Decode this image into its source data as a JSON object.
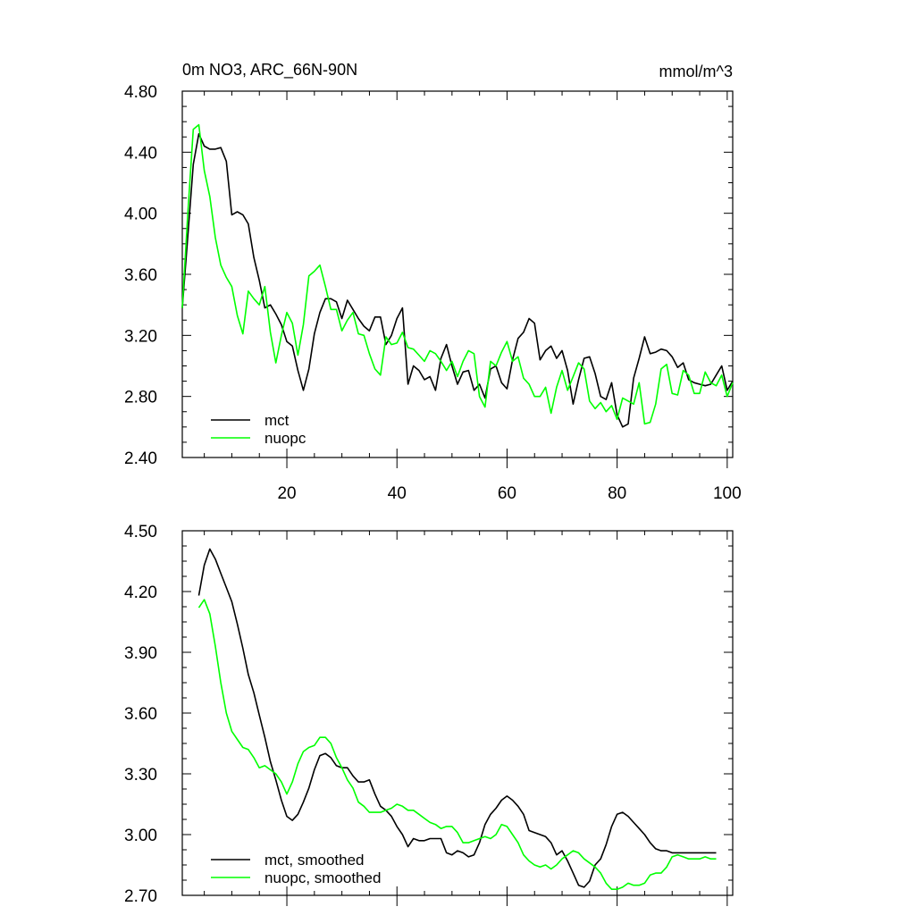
{
  "chart_data": [
    {
      "type": "line",
      "title": "0m NO3, ARC_66N-90N",
      "units_label": "mmol/m^3",
      "xlabel": "",
      "ylabel": "",
      "xlim": [
        1,
        101
      ],
      "ylim": [
        2.4,
        4.8
      ],
      "xticks": [
        20,
        40,
        60,
        80,
        100
      ],
      "xtick_labels": [
        "20",
        "40",
        "60",
        "80",
        "100"
      ],
      "yticks": [
        2.4,
        2.8,
        3.2,
        3.6,
        4.0,
        4.4,
        4.8
      ],
      "ytick_labels": [
        "2.40",
        "2.80",
        "3.20",
        "3.60",
        "4.00",
        "4.40",
        "4.80"
      ],
      "legend_position": "bottom-left",
      "series": [
        {
          "name": "mct",
          "color": "#000000",
          "x": [
            1,
            2,
            3,
            4,
            5,
            6,
            7,
            8,
            9,
            10,
            11,
            12,
            13,
            14,
            15,
            16,
            17,
            18,
            19,
            20,
            21,
            22,
            23,
            24,
            25,
            26,
            27,
            28,
            29,
            30,
            31,
            32,
            33,
            34,
            35,
            36,
            37,
            38,
            39,
            40,
            41,
            42,
            43,
            44,
            45,
            46,
            47,
            48,
            49,
            50,
            51,
            52,
            53,
            54,
            55,
            56,
            57,
            58,
            59,
            60,
            61,
            62,
            63,
            64,
            65,
            66,
            67,
            68,
            69,
            70,
            71,
            72,
            73,
            74,
            75,
            76,
            77,
            78,
            79,
            80,
            81,
            82,
            83,
            84,
            85,
            86,
            87,
            88,
            89,
            90,
            91,
            92,
            93,
            94,
            95,
            96,
            97,
            98,
            99,
            100,
            101
          ],
          "y": [
            3.38,
            3.85,
            4.32,
            4.52,
            4.44,
            4.42,
            4.42,
            4.43,
            4.34,
            3.99,
            4.01,
            3.99,
            3.93,
            3.71,
            3.56,
            3.38,
            3.4,
            3.34,
            3.27,
            3.16,
            3.13,
            2.97,
            2.84,
            2.98,
            3.21,
            3.35,
            3.44,
            3.44,
            3.42,
            3.31,
            3.43,
            3.37,
            3.31,
            3.26,
            3.23,
            3.32,
            3.32,
            3.14,
            3.2,
            3.31,
            3.38,
            2.88,
            3.0,
            2.97,
            2.91,
            2.93,
            2.84,
            3.05,
            3.14,
            3.0,
            2.88,
            2.96,
            2.97,
            2.84,
            2.88,
            2.79,
            2.98,
            3.0,
            2.89,
            2.85,
            3.04,
            3.18,
            3.22,
            3.31,
            3.28,
            3.04,
            3.1,
            3.13,
            3.05,
            3.1,
            2.97,
            2.75,
            2.91,
            3.05,
            3.06,
            2.95,
            2.8,
            2.78,
            2.89,
            2.68,
            2.6,
            2.62,
            2.92,
            3.05,
            3.19,
            3.08,
            3.09,
            3.11,
            3.1,
            3.06,
            2.99,
            3.02,
            2.91,
            2.89,
            2.88,
            2.87,
            2.88,
            2.94,
            3.0,
            2.84,
            2.9
          ]
        },
        {
          "name": "nuopc",
          "color": "#00ff00",
          "x": [
            1,
            2,
            3,
            4,
            5,
            6,
            7,
            8,
            9,
            10,
            11,
            12,
            13,
            14,
            15,
            16,
            17,
            18,
            19,
            20,
            21,
            22,
            23,
            24,
            25,
            26,
            27,
            28,
            29,
            30,
            31,
            32,
            33,
            34,
            35,
            36,
            37,
            38,
            39,
            40,
            41,
            42,
            43,
            44,
            45,
            46,
            47,
            48,
            49,
            50,
            51,
            52,
            53,
            54,
            55,
            56,
            57,
            58,
            59,
            60,
            61,
            62,
            63,
            64,
            65,
            66,
            67,
            68,
            69,
            70,
            71,
            72,
            73,
            74,
            75,
            76,
            77,
            78,
            79,
            80,
            81,
            82,
            83,
            84,
            85,
            86,
            87,
            88,
            89,
            90,
            91,
            92,
            93,
            94,
            95,
            96,
            97,
            98,
            99,
            100,
            101
          ],
          "y": [
            3.38,
            4.0,
            4.55,
            4.58,
            4.28,
            4.11,
            3.84,
            3.66,
            3.58,
            3.52,
            3.33,
            3.21,
            3.49,
            3.44,
            3.4,
            3.52,
            3.22,
            3.02,
            3.2,
            3.35,
            3.28,
            3.07,
            3.27,
            3.59,
            3.62,
            3.66,
            3.52,
            3.37,
            3.37,
            3.23,
            3.3,
            3.35,
            3.21,
            3.2,
            3.08,
            2.98,
            2.94,
            3.19,
            3.14,
            3.15,
            3.22,
            3.12,
            3.11,
            3.07,
            3.03,
            3.1,
            3.08,
            3.03,
            2.97,
            3.03,
            2.93,
            3.03,
            3.1,
            3.08,
            2.8,
            2.73,
            3.03,
            3.0,
            3.09,
            3.16,
            3.03,
            3.06,
            2.92,
            2.88,
            2.8,
            2.8,
            2.86,
            2.69,
            2.86,
            2.97,
            2.84,
            2.93,
            3.02,
            2.98,
            2.77,
            2.72,
            2.76,
            2.7,
            2.74,
            2.65,
            2.79,
            2.77,
            2.75,
            2.89,
            2.62,
            2.63,
            2.75,
            2.98,
            3.01,
            2.82,
            2.81,
            2.97,
            2.94,
            2.82,
            2.82,
            2.96,
            2.89,
            2.87,
            2.94,
            2.8,
            2.89
          ]
        }
      ]
    },
    {
      "type": "line",
      "title": "",
      "xlabel": "",
      "ylabel": "",
      "xlim": [
        1,
        101
      ],
      "ylim": [
        2.7,
        4.5
      ],
      "xticks": [
        20,
        40,
        60,
        80,
        100
      ],
      "xtick_labels": [],
      "yticks": [
        2.7,
        3.0,
        3.3,
        3.6,
        3.9,
        4.2,
        4.5
      ],
      "ytick_labels": [
        "2.70",
        "3.00",
        "3.30",
        "3.60",
        "3.90",
        "4.20",
        "4.50"
      ],
      "legend_position": "bottom-left",
      "series": [
        {
          "name": "mct, smoothed",
          "color": "#000000",
          "x": [
            4,
            5,
            6,
            7,
            8,
            9,
            10,
            11,
            12,
            13,
            14,
            15,
            16,
            17,
            18,
            19,
            20,
            21,
            22,
            23,
            24,
            25,
            26,
            27,
            28,
            29,
            30,
            31,
            32,
            33,
            34,
            35,
            36,
            37,
            38,
            39,
            40,
            41,
            42,
            43,
            44,
            45,
            46,
            47,
            48,
            49,
            50,
            51,
            52,
            53,
            54,
            55,
            56,
            57,
            58,
            59,
            60,
            61,
            62,
            63,
            64,
            65,
            66,
            67,
            68,
            69,
            70,
            71,
            72,
            73,
            74,
            75,
            76,
            77,
            78,
            79,
            80,
            81,
            82,
            83,
            84,
            85,
            86,
            87,
            88,
            89,
            90,
            91,
            92,
            93,
            94,
            95,
            96,
            97,
            98
          ],
          "y": [
            4.18,
            4.33,
            4.41,
            4.36,
            4.29,
            4.22,
            4.15,
            4.04,
            3.92,
            3.79,
            3.7,
            3.59,
            3.48,
            3.36,
            3.27,
            3.17,
            3.09,
            3.07,
            3.1,
            3.16,
            3.23,
            3.32,
            3.39,
            3.4,
            3.38,
            3.34,
            3.33,
            3.33,
            3.29,
            3.26,
            3.26,
            3.27,
            3.2,
            3.14,
            3.12,
            3.09,
            3.04,
            3.0,
            2.94,
            2.98,
            2.97,
            2.97,
            2.98,
            2.98,
            2.98,
            2.91,
            2.9,
            2.92,
            2.91,
            2.89,
            2.9,
            2.96,
            3.05,
            3.1,
            3.13,
            3.17,
            3.19,
            3.17,
            3.14,
            3.1,
            3.02,
            3.01,
            3.0,
            2.99,
            2.96,
            2.9,
            2.92,
            2.87,
            2.81,
            2.75,
            2.74,
            2.77,
            2.85,
            2.88,
            2.95,
            3.04,
            3.1,
            3.11,
            3.09,
            3.06,
            3.03,
            3.0,
            2.96,
            2.93,
            2.92,
            2.92,
            2.91,
            2.91,
            2.91,
            2.91,
            2.91,
            2.91,
            2.91,
            2.91,
            2.91
          ]
        },
        {
          "name": "nuopc, smoothed",
          "color": "#00ff00",
          "x": [
            4,
            5,
            6,
            7,
            8,
            9,
            10,
            11,
            12,
            13,
            14,
            15,
            16,
            17,
            18,
            19,
            20,
            21,
            22,
            23,
            24,
            25,
            26,
            27,
            28,
            29,
            30,
            31,
            32,
            33,
            34,
            35,
            36,
            37,
            38,
            39,
            40,
            41,
            42,
            43,
            44,
            45,
            46,
            47,
            48,
            49,
            50,
            51,
            52,
            53,
            54,
            55,
            56,
            57,
            58,
            59,
            60,
            61,
            62,
            63,
            64,
            65,
            66,
            67,
            68,
            69,
            70,
            71,
            72,
            73,
            74,
            75,
            76,
            77,
            78,
            79,
            80,
            81,
            82,
            83,
            84,
            85,
            86,
            87,
            88,
            89,
            90,
            91,
            92,
            93,
            94,
            95,
            96,
            97,
            98
          ],
          "y": [
            4.12,
            4.16,
            4.09,
            3.93,
            3.75,
            3.6,
            3.51,
            3.47,
            3.43,
            3.42,
            3.38,
            3.33,
            3.34,
            3.32,
            3.3,
            3.26,
            3.2,
            3.26,
            3.35,
            3.41,
            3.43,
            3.44,
            3.48,
            3.48,
            3.45,
            3.38,
            3.33,
            3.27,
            3.23,
            3.16,
            3.14,
            3.11,
            3.11,
            3.11,
            3.12,
            3.13,
            3.15,
            3.14,
            3.12,
            3.12,
            3.1,
            3.08,
            3.06,
            3.05,
            3.03,
            3.04,
            3.04,
            3.01,
            2.96,
            2.96,
            2.97,
            2.98,
            2.99,
            2.98,
            3.0,
            3.05,
            3.04,
            3.0,
            2.96,
            2.9,
            2.87,
            2.85,
            2.84,
            2.85,
            2.83,
            2.85,
            2.88,
            2.9,
            2.92,
            2.91,
            2.88,
            2.86,
            2.84,
            2.81,
            2.76,
            2.73,
            2.73,
            2.74,
            2.76,
            2.75,
            2.75,
            2.76,
            2.8,
            2.81,
            2.81,
            2.84,
            2.89,
            2.9,
            2.89,
            2.88,
            2.88,
            2.88,
            2.89,
            2.88,
            2.88
          ]
        }
      ]
    }
  ]
}
